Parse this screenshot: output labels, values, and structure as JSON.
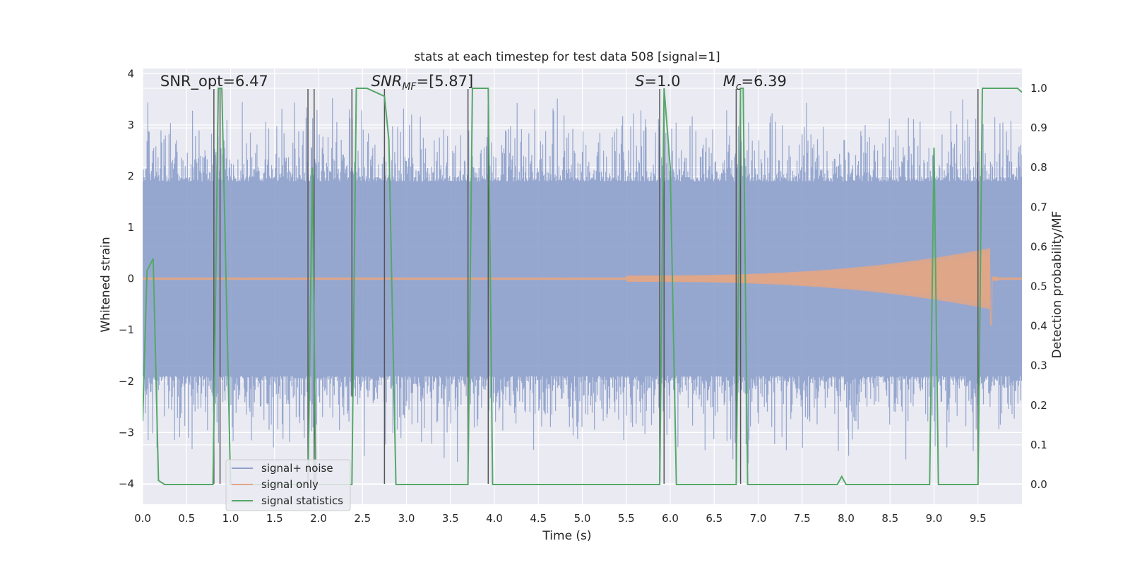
{
  "chart_data": {
    "type": "line",
    "title": "stats at each timestep for test data 508 [signal=1]",
    "xlabel": "Time (s)",
    "ylabel": "Whitened strain",
    "y2label": "Detection probability/MF",
    "xlim": [
      0,
      10
    ],
    "ylim": [
      -4.4,
      4.1
    ],
    "y2lim": [
      -0.05,
      1.05
    ],
    "xticks": [
      0.0,
      0.5,
      1.0,
      1.5,
      2.0,
      2.5,
      3.0,
      3.5,
      4.0,
      4.5,
      5.0,
      5.5,
      6.0,
      6.5,
      7.0,
      7.5,
      8.0,
      8.5,
      9.0,
      9.5
    ],
    "xtick_labels": [
      "0.0",
      "0.5",
      "1.0",
      "1.5",
      "2.0",
      "2.5",
      "3.0",
      "3.5",
      "4.0",
      "4.5",
      "5.0",
      "5.5",
      "6.0",
      "6.5",
      "7.0",
      "7.5",
      "8.0",
      "8.5",
      "9.0",
      "9.5"
    ],
    "yticks": [
      -4,
      -3,
      -2,
      -1,
      0,
      1,
      2,
      3,
      4
    ],
    "ytick_labels": [
      "−4",
      "−3",
      "−2",
      "−1",
      "0",
      "1",
      "2",
      "3",
      "4"
    ],
    "y2ticks": [
      0.0,
      0.1,
      0.2,
      0.3,
      0.4,
      0.5,
      0.6,
      0.7,
      0.8,
      0.9,
      1.0
    ],
    "y2tick_labels": [
      "0.0",
      "0.1",
      "0.2",
      "0.3",
      "0.4",
      "0.5",
      "0.6",
      "0.7",
      "0.8",
      "0.9",
      "1.0"
    ],
    "grid": true,
    "legend_position": "lower-left",
    "annotations": [
      {
        "text": "SNR_opt=6.47",
        "x": 0.2,
        "y": 3.85
      },
      {
        "text": "SNR_MF=[5.87]",
        "base": "SNR",
        "sub": "MF",
        "tail": "=[5.87]",
        "x": 2.6,
        "y": 3.85
      },
      {
        "text": "S=1.0",
        "base": "S",
        "tail": "=1.0",
        "x": 5.6,
        "y": 3.85
      },
      {
        "text": "M_c=6.39",
        "base": "M",
        "sub": "c",
        "tail": "=6.39",
        "x": 6.6,
        "y": 3.85
      }
    ],
    "series": [
      {
        "name": "signal+ noise",
        "color": "#8da0cb",
        "kind": "noise",
        "envelope": [
          1.9,
          3.7
        ],
        "x_range": [
          0,
          10
        ]
      },
      {
        "name": "signal only",
        "color": "#e0a688",
        "kind": "chirp",
        "start_time": 5.5,
        "peak_time": 9.65,
        "peak_amplitude": 0.6,
        "min_amplitude": -0.9
      },
      {
        "name": "signal statistics",
        "color": "#55a868",
        "axis": "right",
        "x": [
          0.0,
          0.05,
          0.12,
          0.18,
          0.25,
          0.8,
          0.86,
          0.9,
          0.95,
          1.0,
          1.88,
          1.93,
          1.97,
          2.03,
          2.38,
          2.43,
          2.47,
          2.55,
          2.75,
          2.8,
          2.88,
          3.7,
          3.75,
          3.78,
          3.93,
          3.98,
          4.0,
          5.88,
          5.93,
          6.0,
          6.07,
          6.75,
          6.8,
          6.83,
          6.88,
          7.9,
          7.95,
          8.0,
          8.95,
          9.0,
          9.05,
          9.5,
          9.55,
          9.6,
          9.95,
          10.0
        ],
        "y": [
          0.16,
          0.54,
          0.57,
          0.01,
          0.0,
          0.0,
          1.0,
          1.0,
          0.5,
          0.0,
          0.0,
          0.8,
          0.0,
          0.0,
          0.0,
          1.0,
          1.0,
          1.0,
          0.98,
          0.87,
          0.0,
          0.0,
          1.0,
          1.0,
          1.0,
          0.0,
          0.0,
          0.0,
          1.0,
          0.8,
          0.0,
          0.0,
          1.0,
          1.0,
          0.0,
          0.0,
          0.02,
          0.0,
          0.0,
          0.85,
          0.0,
          0.0,
          1.0,
          1.0,
          1.0,
          0.99
        ]
      }
    ],
    "vertical_lines": {
      "color": "#555555",
      "segments": [
        {
          "x": 0.81,
          "y0": -4.0,
          "y1": 3.7
        },
        {
          "x": 0.88,
          "y0": -4.0,
          "y1": 3.7
        },
        {
          "x": 1.88,
          "y0": -4.0,
          "y1": 3.7
        },
        {
          "x": 1.95,
          "y0": -4.0,
          "y1": 3.7
        },
        {
          "x": 2.38,
          "y0": -2.3,
          "y1": 3.7
        },
        {
          "x": 2.75,
          "y0": -4.0,
          "y1": 3.7
        },
        {
          "x": 3.7,
          "y0": -4.0,
          "y1": 3.7
        },
        {
          "x": 3.93,
          "y0": -4.0,
          "y1": 3.7
        },
        {
          "x": 5.88,
          "y0": -4.0,
          "y1": 3.7
        },
        {
          "x": 5.93,
          "y0": -4.0,
          "y1": 3.7
        },
        {
          "x": 6.75,
          "y0": -4.0,
          "y1": 3.7
        },
        {
          "x": 6.8,
          "y0": -4.0,
          "y1": 3.7
        },
        {
          "x": 9.5,
          "y0": -4.0,
          "y1": 3.7
        }
      ]
    }
  }
}
